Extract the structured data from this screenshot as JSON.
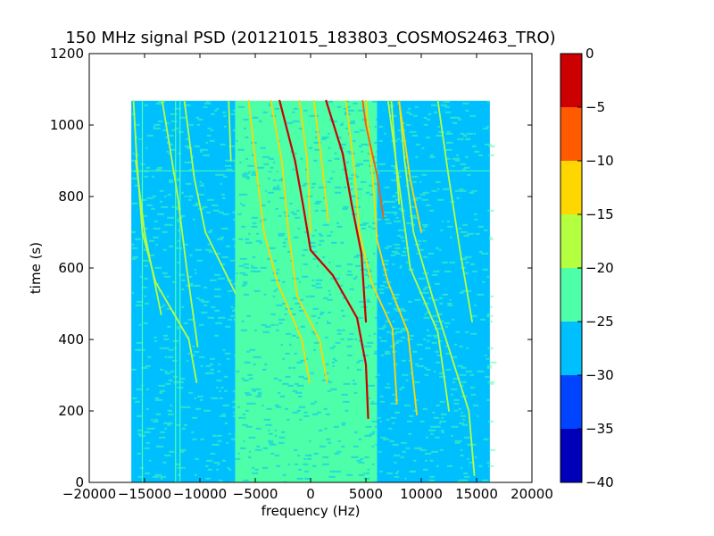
{
  "chart_data": {
    "type": "heatmap",
    "title": "150 MHz signal PSD (20121015_183803_COSMOS2463_TRO)",
    "xlabel": "frequency (Hz)",
    "ylabel": "time (s)",
    "xlim": [
      -20000,
      20000
    ],
    "ylim": [
      0,
      1200
    ],
    "x_ticks": [
      -20000,
      -15000,
      -10000,
      -5000,
      0,
      5000,
      10000,
      15000,
      20000
    ],
    "x_tick_labels": [
      "−20000",
      "−15000",
      "−10000",
      "−5000",
      "0",
      "5000",
      "10000",
      "15000",
      "20000"
    ],
    "y_ticks": [
      0,
      200,
      400,
      600,
      800,
      1000,
      1200
    ],
    "y_tick_labels": [
      "0",
      "200",
      "400",
      "600",
      "800",
      "1000",
      "1200"
    ],
    "data_extent": {
      "x": [
        -16200,
        16200
      ],
      "y": [
        0,
        1068
      ]
    },
    "colorbar": {
      "levels": [
        -40,
        -35,
        -30,
        -25,
        -20,
        -15,
        -10,
        -5,
        0
      ],
      "tick_labels": [
        "−40",
        "−35",
        "−30",
        "−25",
        "−20",
        "−15",
        "−10",
        "−5",
        "0"
      ],
      "colors": [
        "#0000bb",
        "#0044ff",
        "#00bfff",
        "#4dffa8",
        "#b4ff3f",
        "#ffd700",
        "#ff5a00",
        "#cc0000"
      ]
    },
    "background_regions": [
      {
        "x": [
          -16200,
          -6800
        ],
        "level": -27.5
      },
      {
        "x": [
          -6800,
          6000
        ],
        "level": -22.5
      },
      {
        "x": [
          6000,
          16200
        ],
        "level": -27.5
      }
    ],
    "traces": [
      {
        "name": "",
        "level": -2.5,
        "points": [
          [
            5200,
            180
          ],
          [
            5000,
            330
          ],
          [
            4200,
            460
          ],
          [
            2000,
            580
          ],
          [
            0,
            650
          ],
          [
            -700,
            780
          ],
          [
            -1400,
            900
          ],
          [
            -2800,
            1068
          ]
        ]
      },
      {
        "name": "",
        "level": -2.5,
        "points": [
          [
            5000,
            450
          ],
          [
            4600,
            640
          ],
          [
            3700,
            780
          ],
          [
            2900,
            920
          ],
          [
            1400,
            1068
          ]
        ]
      },
      {
        "name": "",
        "level": -7.5,
        "points": [
          [
            6600,
            740
          ],
          [
            6000,
            860
          ],
          [
            5000,
            1000
          ],
          [
            4700,
            1068
          ]
        ]
      },
      {
        "name": "",
        "level": -12.5,
        "points": [
          [
            -100,
            280
          ],
          [
            -800,
            400
          ],
          [
            -3000,
            560
          ],
          [
            -4200,
            700
          ],
          [
            -4800,
            850
          ],
          [
            -5600,
            1068
          ]
        ]
      },
      {
        "name": "",
        "level": -12.5,
        "points": [
          [
            1500,
            280
          ],
          [
            800,
            400
          ],
          [
            -1200,
            520
          ],
          [
            -2000,
            700
          ],
          [
            -2600,
            900
          ],
          [
            -3600,
            1068
          ]
        ]
      },
      {
        "name": "",
        "level": -12.5,
        "points": [
          [
            0,
            700
          ],
          [
            -300,
            900
          ],
          [
            -1000,
            1068
          ]
        ]
      },
      {
        "name": "",
        "level": -12.5,
        "points": [
          [
            1600,
            730
          ],
          [
            1000,
            900
          ],
          [
            300,
            1068
          ]
        ]
      },
      {
        "name": "",
        "level": -12.5,
        "points": [
          [
            7800,
            220
          ],
          [
            7400,
            430
          ],
          [
            5500,
            560
          ],
          [
            4400,
            700
          ],
          [
            4000,
            860
          ],
          [
            3200,
            1068
          ]
        ]
      },
      {
        "name": "",
        "level": -12.5,
        "points": [
          [
            9600,
            190
          ],
          [
            8800,
            420
          ],
          [
            7000,
            560
          ],
          [
            6000,
            680
          ],
          [
            5700,
            820
          ],
          [
            5000,
            1068
          ]
        ]
      },
      {
        "name": "",
        "level": -12.5,
        "points": [
          [
            10000,
            700
          ],
          [
            9000,
            850
          ],
          [
            8000,
            1068
          ]
        ]
      },
      {
        "name": "",
        "level": -17.5,
        "points": [
          [
            14800,
            20
          ],
          [
            14300,
            200
          ],
          [
            11000,
            520
          ],
          [
            9300,
            700
          ],
          [
            8500,
            900
          ],
          [
            8000,
            1068
          ]
        ]
      },
      {
        "name": "",
        "level": -17.5,
        "points": [
          [
            12500,
            200
          ],
          [
            11500,
            420
          ],
          [
            9000,
            600
          ],
          [
            7000,
            1068
          ]
        ]
      },
      {
        "name": "",
        "level": -17.5,
        "points": [
          [
            14600,
            450
          ],
          [
            13500,
            650
          ],
          [
            12500,
            850
          ],
          [
            11500,
            1068
          ]
        ]
      },
      {
        "name": "",
        "level": -17.5,
        "points": [
          [
            8000,
            780
          ],
          [
            7300,
            1068
          ]
        ]
      },
      {
        "name": "",
        "level": -17.5,
        "points": [
          [
            -10300,
            280
          ],
          [
            -11000,
            400
          ],
          [
            -14000,
            560
          ],
          [
            -15200,
            700
          ],
          [
            -15700,
            900
          ],
          [
            -16000,
            1068
          ]
        ]
      },
      {
        "name": "",
        "level": -17.5,
        "points": [
          [
            -10200,
            380
          ],
          [
            -11200,
            600
          ],
          [
            -12000,
            800
          ],
          [
            -13400,
            1068
          ]
        ]
      },
      {
        "name": "",
        "level": -17.5,
        "points": [
          [
            -6800,
            530
          ],
          [
            -9500,
            700
          ],
          [
            -10500,
            850
          ],
          [
            -11400,
            1068
          ]
        ]
      },
      {
        "name": "",
        "level": -17.5,
        "points": [
          [
            -7200,
            900
          ],
          [
            -7400,
            1068
          ]
        ]
      },
      {
        "name": "",
        "level": -17.5,
        "points": [
          [
            -13500,
            470
          ],
          [
            -15000,
            700
          ],
          [
            -15800,
            900
          ]
        ]
      }
    ],
    "horizontal_features": [
      {
        "y": 872,
        "level": -22.5
      }
    ],
    "vertical_features": [
      {
        "x": -11800,
        "level": -22.5
      },
      {
        "x": -12200,
        "level": -22.5
      },
      {
        "x": -15200,
        "level": -22.5
      }
    ]
  }
}
